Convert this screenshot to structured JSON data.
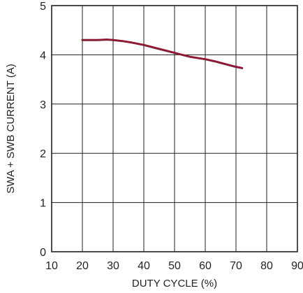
{
  "chart_data": {
    "type": "line",
    "xlabel": "DUTY CYCLE (%)",
    "ylabel": "SWA + SWB CURRENT (A)",
    "xlim": [
      10,
      90
    ],
    "ylim": [
      0,
      5
    ],
    "x_ticks": [
      "10",
      "20",
      "30",
      "40",
      "50",
      "60",
      "70",
      "80",
      "90"
    ],
    "y_ticks": [
      "0",
      "1",
      "2",
      "3",
      "4",
      "5"
    ],
    "grid": true,
    "series": [
      {
        "color": "#8b1a32",
        "x": [
          20,
          22,
          25,
          28,
          30,
          33,
          36,
          40,
          45,
          50,
          55,
          60,
          63,
          66,
          69,
          72
        ],
        "y": [
          4.3,
          4.3,
          4.3,
          4.31,
          4.3,
          4.28,
          4.25,
          4.2,
          4.12,
          4.04,
          3.96,
          3.91,
          3.87,
          3.82,
          3.77,
          3.73
        ]
      }
    ]
  }
}
